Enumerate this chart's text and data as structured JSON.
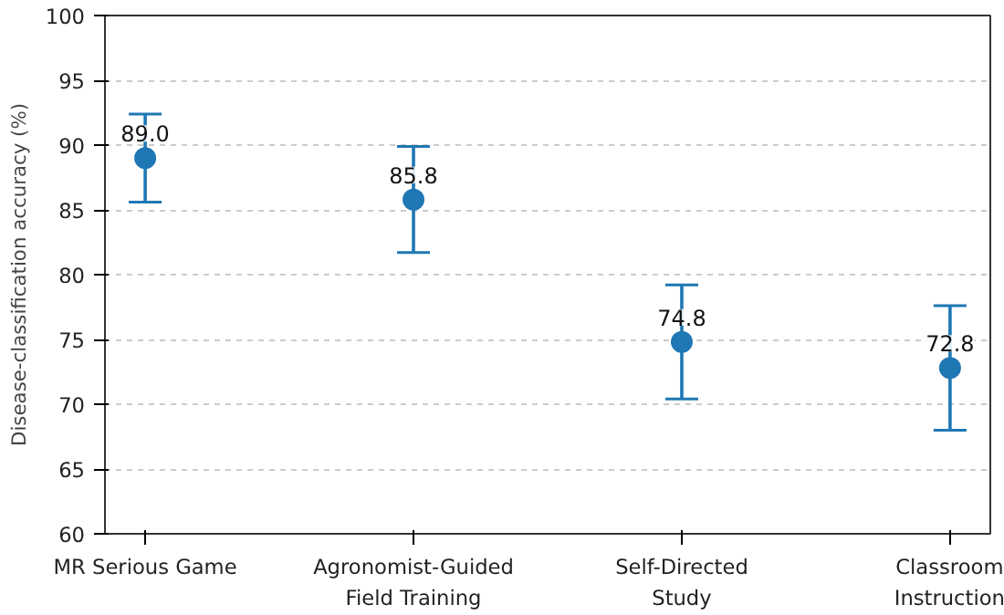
{
  "chart_data": {
    "type": "scatter",
    "ylabel": "Disease-classification accuracy (%)",
    "categories": [
      "MR Serious Game",
      "Agronomist-Guided\nField Training",
      "Self-Directed\nStudy",
      "Classroom\nInstruction"
    ],
    "values": [
      89.0,
      85.8,
      74.8,
      72.8
    ],
    "errors": [
      3.4,
      4.1,
      4.4,
      4.8
    ],
    "value_labels": [
      "89.0",
      "85.8",
      "74.8",
      "72.8"
    ],
    "color": "#1f77b4",
    "marker": "circle",
    "ylim": [
      60,
      100
    ],
    "yticks": [
      60,
      65,
      70,
      75,
      80,
      85,
      90,
      95,
      100
    ],
    "grid": "y"
  }
}
